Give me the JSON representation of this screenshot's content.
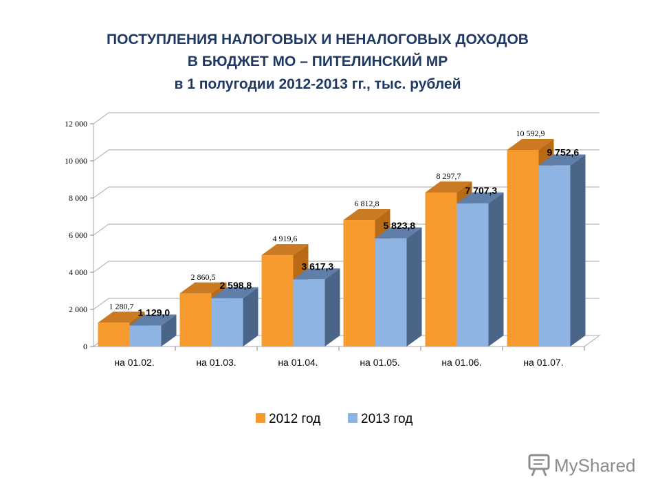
{
  "chart_data": {
    "type": "bar",
    "title": [
      "ПОСТУПЛЕНИЯ НАЛОГОВЫХ И НЕНАЛОГОВЫХ ДОХОДОВ",
      "В БЮДЖЕТ МО – ПИТЕЛИНСКИЙ МР",
      "в 1 полугодии 2012-2013 гг., тыс. рублей"
    ],
    "categories": [
      "на 01.02.",
      "на 01.03.",
      "на 01.04.",
      "на 01.05.",
      "на 01.06.",
      "на 01.07."
    ],
    "series": [
      {
        "name": "2012 год",
        "values": [
          1280.7,
          2860.5,
          4919.6,
          6812.8,
          8297.7,
          10592.9
        ],
        "labels": [
          "1 280,7",
          "2 860,5",
          "4 919,6",
          "6 812,8",
          "8 297,7",
          "10 592,9"
        ]
      },
      {
        "name": "2013 год",
        "values": [
          1129.0,
          2598.8,
          3617.3,
          5823.8,
          7707.3,
          9752.6
        ],
        "labels": [
          "1 129,0",
          "2 598,8",
          "3 617,3",
          "5 823,8",
          "7 707,3",
          "9 752,6"
        ]
      }
    ],
    "ylim": [
      0,
      12000
    ],
    "yticks": [
      0,
      2000,
      4000,
      6000,
      8000,
      10000,
      12000
    ],
    "ytick_labels": [
      "0",
      "2 000",
      "4 000",
      "6 000",
      "8 000",
      "10 000",
      "12 000"
    ],
    "grid": true,
    "legend_position": "bottom",
    "colors": {
      "2012": "#f79a2e",
      "2013": "#8eb4e3"
    }
  },
  "watermark": {
    "text": "MyShared",
    "icon": "presentation-board-icon"
  }
}
